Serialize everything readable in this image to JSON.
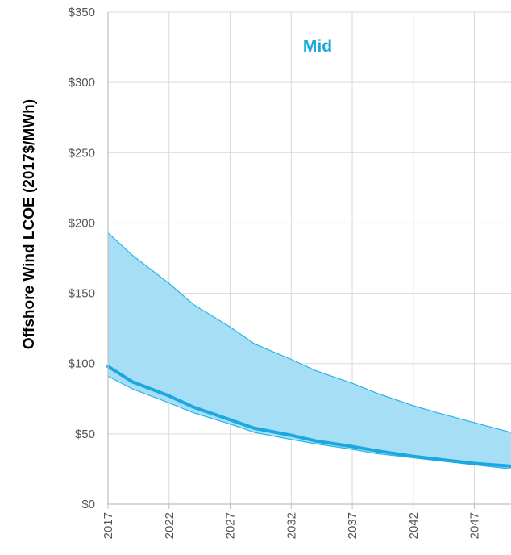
{
  "chart_data": {
    "type": "area",
    "title": "Mid",
    "xlabel": "",
    "ylabel": "Offshore Wind LCOE (2017$/MWh)",
    "xlim": [
      2017,
      2050
    ],
    "ylim": [
      0,
      350
    ],
    "x_ticks": [
      "2017",
      "2022",
      "2027",
      "2032",
      "2037",
      "2042",
      "2047"
    ],
    "y_ticks": [
      "$0",
      "$50",
      "$100",
      "$150",
      "$200",
      "$250",
      "$300",
      "$350"
    ],
    "y_tick_values": [
      0,
      50,
      100,
      150,
      200,
      250,
      300,
      350
    ],
    "grid": true,
    "x": [
      2017,
      2019,
      2022,
      2024,
      2027,
      2029,
      2032,
      2034,
      2037,
      2039,
      2042,
      2044,
      2047,
      2050
    ],
    "series": [
      {
        "role": "range-upper",
        "values": [
          193,
          177,
          157,
          142,
          126,
          114,
          103,
          95,
          86,
          79,
          70,
          65,
          58,
          51
        ]
      },
      {
        "role": "median",
        "values": [
          98,
          87,
          77,
          69,
          60,
          54,
          49,
          45,
          41,
          38,
          34,
          32,
          29,
          27
        ]
      },
      {
        "role": "range-lower",
        "values": [
          91,
          82,
          72,
          65,
          57,
          51,
          46,
          43,
          39,
          36,
          33,
          31,
          28,
          25
        ]
      }
    ],
    "colors": {
      "band_fill": "#a6def6",
      "band_edge": "#29b5e6",
      "median_line": "#1ba7e0",
      "title": "#1ba7e0",
      "grid": "#d9d9d9",
      "axis": "#bfbfbf"
    }
  }
}
